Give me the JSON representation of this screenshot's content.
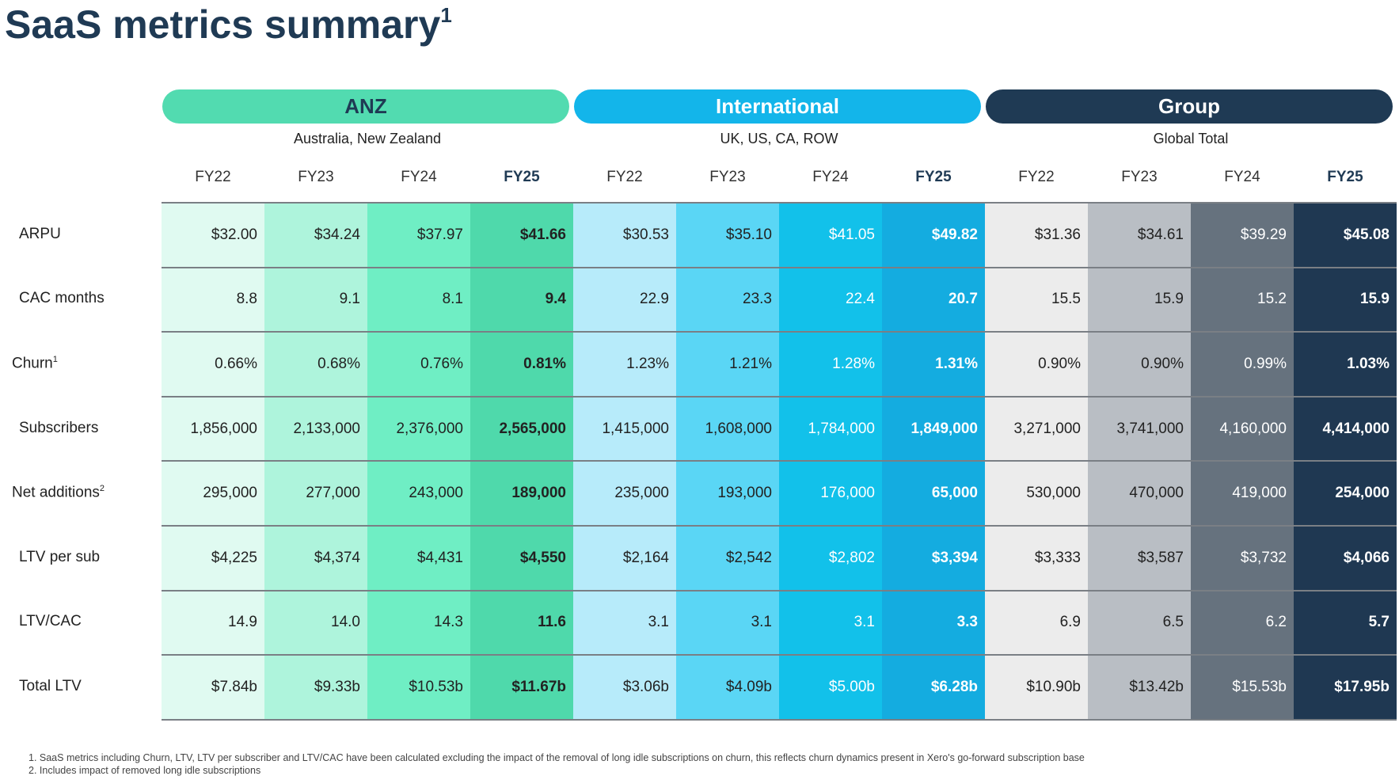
{
  "title": "SaaS metrics summary",
  "title_note": "1",
  "groups": [
    {
      "name": "ANZ",
      "subtitle": "Australia, New Zealand",
      "years": [
        "FY22",
        "FY23",
        "FY24",
        "FY25"
      ]
    },
    {
      "name": "International",
      "subtitle": "UK, US, CA, ROW",
      "years": [
        "FY22",
        "FY23",
        "FY24",
        "FY25"
      ]
    },
    {
      "name": "Group",
      "subtitle": "Global Total",
      "years": [
        "FY22",
        "FY23",
        "FY24",
        "FY25"
      ]
    }
  ],
  "rows": [
    {
      "label": "ARPU",
      "cells": [
        "$32.00",
        "$34.24",
        "$37.97",
        "$41.66",
        "$30.53",
        "$35.10",
        "$41.05",
        "$49.82",
        "$31.36",
        "$34.61",
        "$39.29",
        "$45.08"
      ]
    },
    {
      "label": "CAC months",
      "cells": [
        "8.8",
        "9.1",
        "8.1",
        "9.4",
        "22.9",
        "23.3",
        "22.4",
        "20.7",
        "15.5",
        "15.9",
        "15.2",
        "15.9"
      ]
    },
    {
      "label": "Churn",
      "note": "1",
      "cells": [
        "0.66%",
        "0.68%",
        "0.76%",
        "0.81%",
        "1.23%",
        "1.21%",
        "1.28%",
        "1.31%",
        "0.90%",
        "0.90%",
        "0.99%",
        "1.03%"
      ]
    },
    {
      "label": "Subscribers",
      "cells": [
        "1,856,000",
        "2,133,000",
        "2,376,000",
        "2,565,000",
        "1,415,000",
        "1,608,000",
        "1,784,000",
        "1,849,000",
        "3,271,000",
        "3,741,000",
        "4,160,000",
        "4,414,000"
      ]
    },
    {
      "label": "Net additions",
      "note": "2",
      "cells": [
        "295,000",
        "277,000",
        "243,000",
        "189,000",
        "235,000",
        "193,000",
        "176,000",
        "65,000",
        "530,000",
        "470,000",
        "419,000",
        "254,000"
      ]
    },
    {
      "label": "LTV per sub",
      "cells": [
        "$4,225",
        "$4,374",
        "$4,431",
        "$4,550",
        "$2,164",
        "$2,542",
        "$2,802",
        "$3,394",
        "$3,333",
        "$3,587",
        "$3,732",
        "$4,066"
      ]
    },
    {
      "label": "LTV/CAC",
      "cells": [
        "14.9",
        "14.0",
        "14.3",
        "11.6",
        "3.1",
        "3.1",
        "3.1",
        "3.3",
        "6.9",
        "6.5",
        "6.2",
        "5.7"
      ]
    },
    {
      "label": "Total LTV",
      "cells": [
        "$7.84b",
        "$9.33b",
        "$10.53b",
        "$11.67b",
        "$3.06b",
        "$4.09b",
        "$5.00b",
        "$6.28b",
        "$10.90b",
        "$13.42b",
        "$15.53b",
        "$17.95b"
      ]
    }
  ],
  "footnotes": [
    "1. SaaS metrics including Churn, LTV, LTV per subscriber and LTV/CAC have been calculated excluding the impact of the removal of long idle subscriptions on churn, this reflects churn dynamics present in Xero's go-forward subscription base",
    "2. Includes impact of removed long idle subscriptions"
  ]
}
